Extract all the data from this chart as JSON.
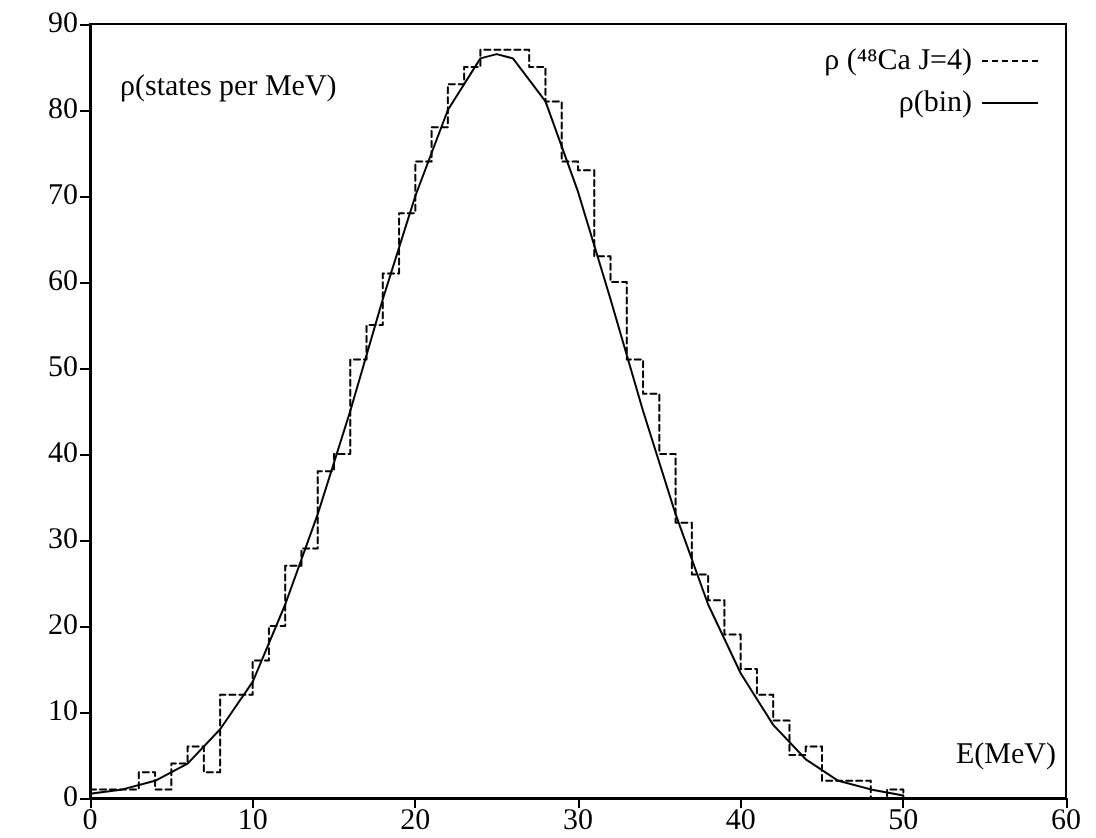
{
  "chart_data": {
    "type": "step",
    "xlabel": "E(MeV)",
    "ylabel": "ρ(states per MeV)",
    "series": [
      {
        "name": "ρ (⁴⁸Ca J=4)",
        "color": "#000000",
        "line_style": "dashed",
        "x": [
          0,
          1,
          2,
          3,
          4,
          5,
          6,
          7,
          8,
          9,
          10,
          11,
          12,
          13,
          14,
          15,
          16,
          17,
          18,
          19,
          20,
          21,
          22,
          23,
          24,
          25,
          26,
          27,
          28,
          29,
          30,
          31,
          32,
          33,
          34,
          35,
          36,
          37,
          38,
          39,
          40,
          41,
          42,
          43,
          44,
          45,
          46,
          47,
          48,
          49,
          50
        ],
        "values": [
          1,
          1,
          1,
          3,
          1,
          4,
          6,
          3,
          12,
          12,
          16,
          20,
          27,
          29,
          38,
          40,
          51,
          55,
          61,
          68,
          74,
          78,
          83,
          85,
          87,
          87,
          87,
          85,
          81,
          74,
          73,
          63,
          60,
          51,
          47,
          40,
          32,
          26,
          23,
          19,
          15,
          12,
          9,
          5,
          6,
          2,
          2,
          2,
          0,
          1,
          0
        ]
      },
      {
        "name": "ρ(bin)",
        "type": "line",
        "color": "#000000",
        "line_style": "solid",
        "x": [
          0,
          2,
          4,
          6,
          8,
          10,
          12,
          14,
          16,
          18,
          20,
          22,
          24,
          25,
          26,
          28,
          30,
          32,
          34,
          36,
          38,
          40,
          42,
          44,
          46,
          48,
          50
        ],
        "values": [
          0.5,
          1,
          2,
          4,
          8,
          13.5,
          22.5,
          33,
          45,
          58,
          70,
          80,
          86,
          86.5,
          86,
          81,
          70.5,
          58,
          45,
          33,
          22.5,
          14.5,
          8.5,
          4.5,
          2,
          1,
          0.3
        ]
      }
    ],
    "xlim": [
      0,
      60
    ],
    "xticks": [
      0,
      10,
      20,
      30,
      40,
      50,
      60
    ],
    "ylim": [
      0,
      90
    ],
    "yticks": [
      0,
      10,
      20,
      30,
      40,
      50,
      60,
      70,
      80,
      90
    ],
    "grid": false,
    "legend": "top right",
    "marker": "none"
  }
}
